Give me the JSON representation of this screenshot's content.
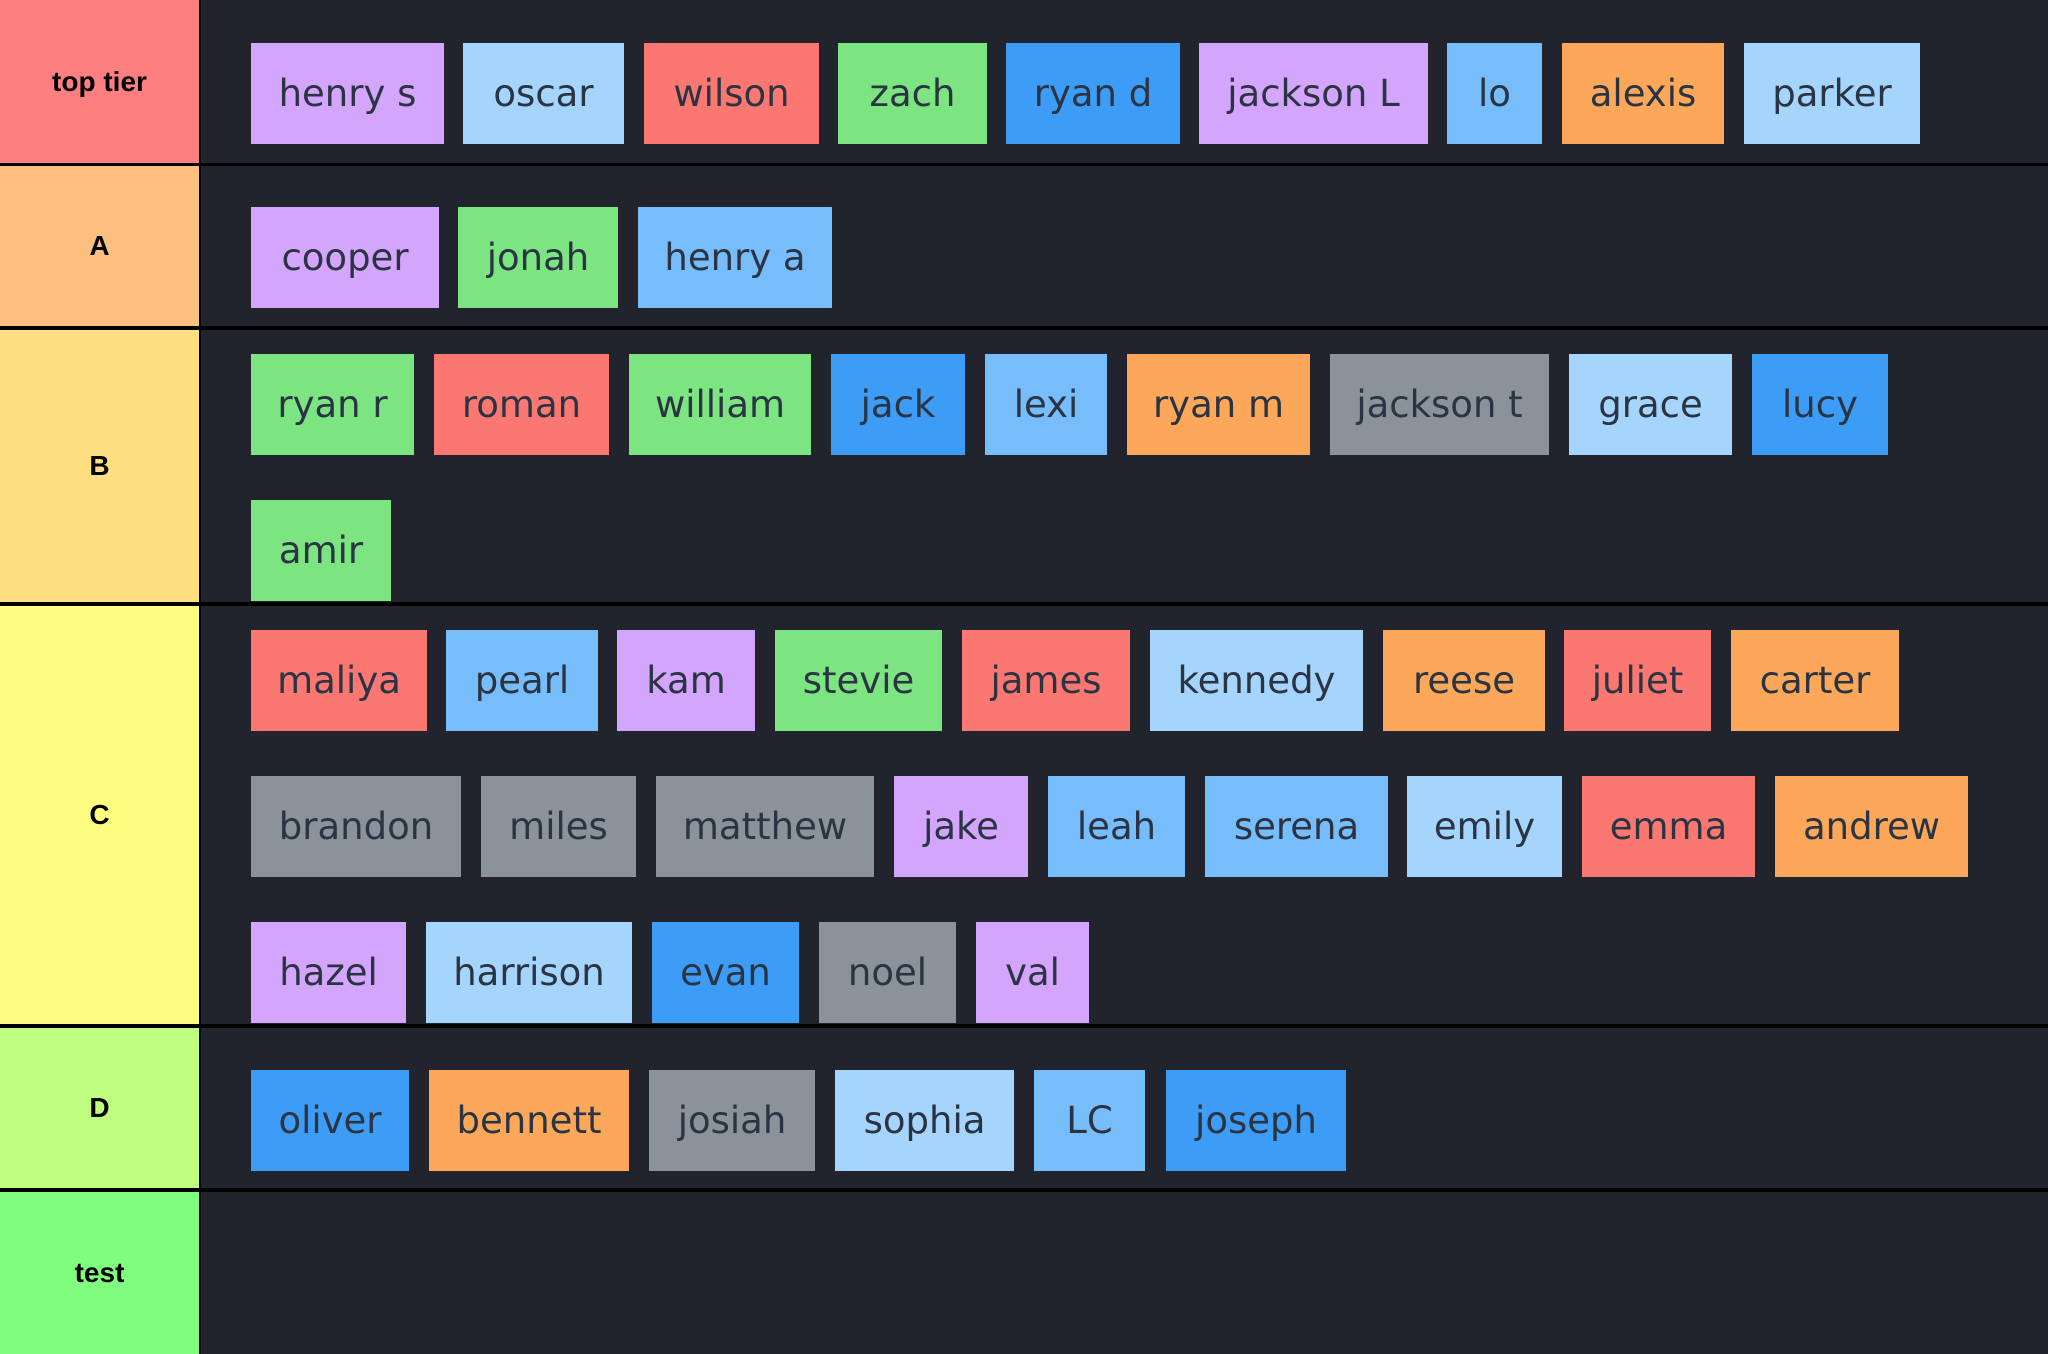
{
  "colors": {
    "purple": "#d4a5fd",
    "sky": "#a5d4fd",
    "red": "#fb7872",
    "green": "#7de482",
    "blue": "#3d9cf5",
    "lightblue": "#77bdfc",
    "orange": "#fda75a",
    "gray": "#8b9299",
    "page_bg": "#21242c"
  },
  "tiers": [
    {
      "label": "top tier",
      "color": "#fd7f7f",
      "items": [
        {
          "name": "henry s",
          "color": "purple"
        },
        {
          "name": "oscar",
          "color": "sky"
        },
        {
          "name": "wilson",
          "color": "red"
        },
        {
          "name": "zach",
          "color": "green"
        },
        {
          "name": "ryan d",
          "color": "blue"
        },
        {
          "name": "jackson L",
          "color": "purple"
        },
        {
          "name": "lo",
          "color": "lightblue"
        },
        {
          "name": "alexis",
          "color": "orange"
        },
        {
          "name": "parker",
          "color": "sky"
        }
      ]
    },
    {
      "label": "A",
      "color": "#fdbf7f",
      "items": [
        {
          "name": "cooper",
          "color": "purple"
        },
        {
          "name": "jonah",
          "color": "green"
        },
        {
          "name": "henry a",
          "color": "lightblue"
        }
      ]
    },
    {
      "label": "B",
      "color": "#fddf7f",
      "items": [
        {
          "name": "ryan r",
          "color": "green"
        },
        {
          "name": "roman",
          "color": "red"
        },
        {
          "name": "william",
          "color": "green"
        },
        {
          "name": "jack",
          "color": "blue"
        },
        {
          "name": "lexi",
          "color": "lightblue"
        },
        {
          "name": "ryan m",
          "color": "orange"
        },
        {
          "name": "jackson t",
          "color": "gray"
        },
        {
          "name": "grace",
          "color": "sky"
        },
        {
          "name": "lucy",
          "color": "blue"
        },
        {
          "name": "amir",
          "color": "green"
        }
      ]
    },
    {
      "label": "C",
      "color": "#fdfd7f",
      "items": [
        {
          "name": "maliya",
          "color": "red"
        },
        {
          "name": "pearl",
          "color": "lightblue"
        },
        {
          "name": "kam",
          "color": "purple"
        },
        {
          "name": "stevie",
          "color": "green"
        },
        {
          "name": "james",
          "color": "red"
        },
        {
          "name": "kennedy",
          "color": "sky"
        },
        {
          "name": "reese",
          "color": "orange"
        },
        {
          "name": "juliet",
          "color": "red"
        },
        {
          "name": "carter",
          "color": "orange"
        },
        {
          "name": "brandon",
          "color": "gray"
        },
        {
          "name": "miles",
          "color": "gray"
        },
        {
          "name": "matthew",
          "color": "gray"
        },
        {
          "name": "jake",
          "color": "purple"
        },
        {
          "name": "leah",
          "color": "lightblue"
        },
        {
          "name": "serena",
          "color": "lightblue"
        },
        {
          "name": "emily",
          "color": "sky"
        },
        {
          "name": "emma",
          "color": "red"
        },
        {
          "name": "andrew",
          "color": "orange"
        },
        {
          "name": "hazel",
          "color": "purple"
        },
        {
          "name": "harrison",
          "color": "sky"
        },
        {
          "name": "evan",
          "color": "blue"
        },
        {
          "name": "noel",
          "color": "gray"
        },
        {
          "name": "val",
          "color": "purple"
        }
      ]
    },
    {
      "label": "D",
      "color": "#bffd7f",
      "items": [
        {
          "name": "oliver",
          "color": "blue"
        },
        {
          "name": "bennett",
          "color": "orange"
        },
        {
          "name": "josiah",
          "color": "gray"
        },
        {
          "name": "sophia",
          "color": "sky"
        },
        {
          "name": "LC",
          "color": "lightblue"
        },
        {
          "name": "joseph",
          "color": "blue"
        }
      ]
    },
    {
      "label": "test",
      "color": "#7ffd7f",
      "items": []
    }
  ]
}
